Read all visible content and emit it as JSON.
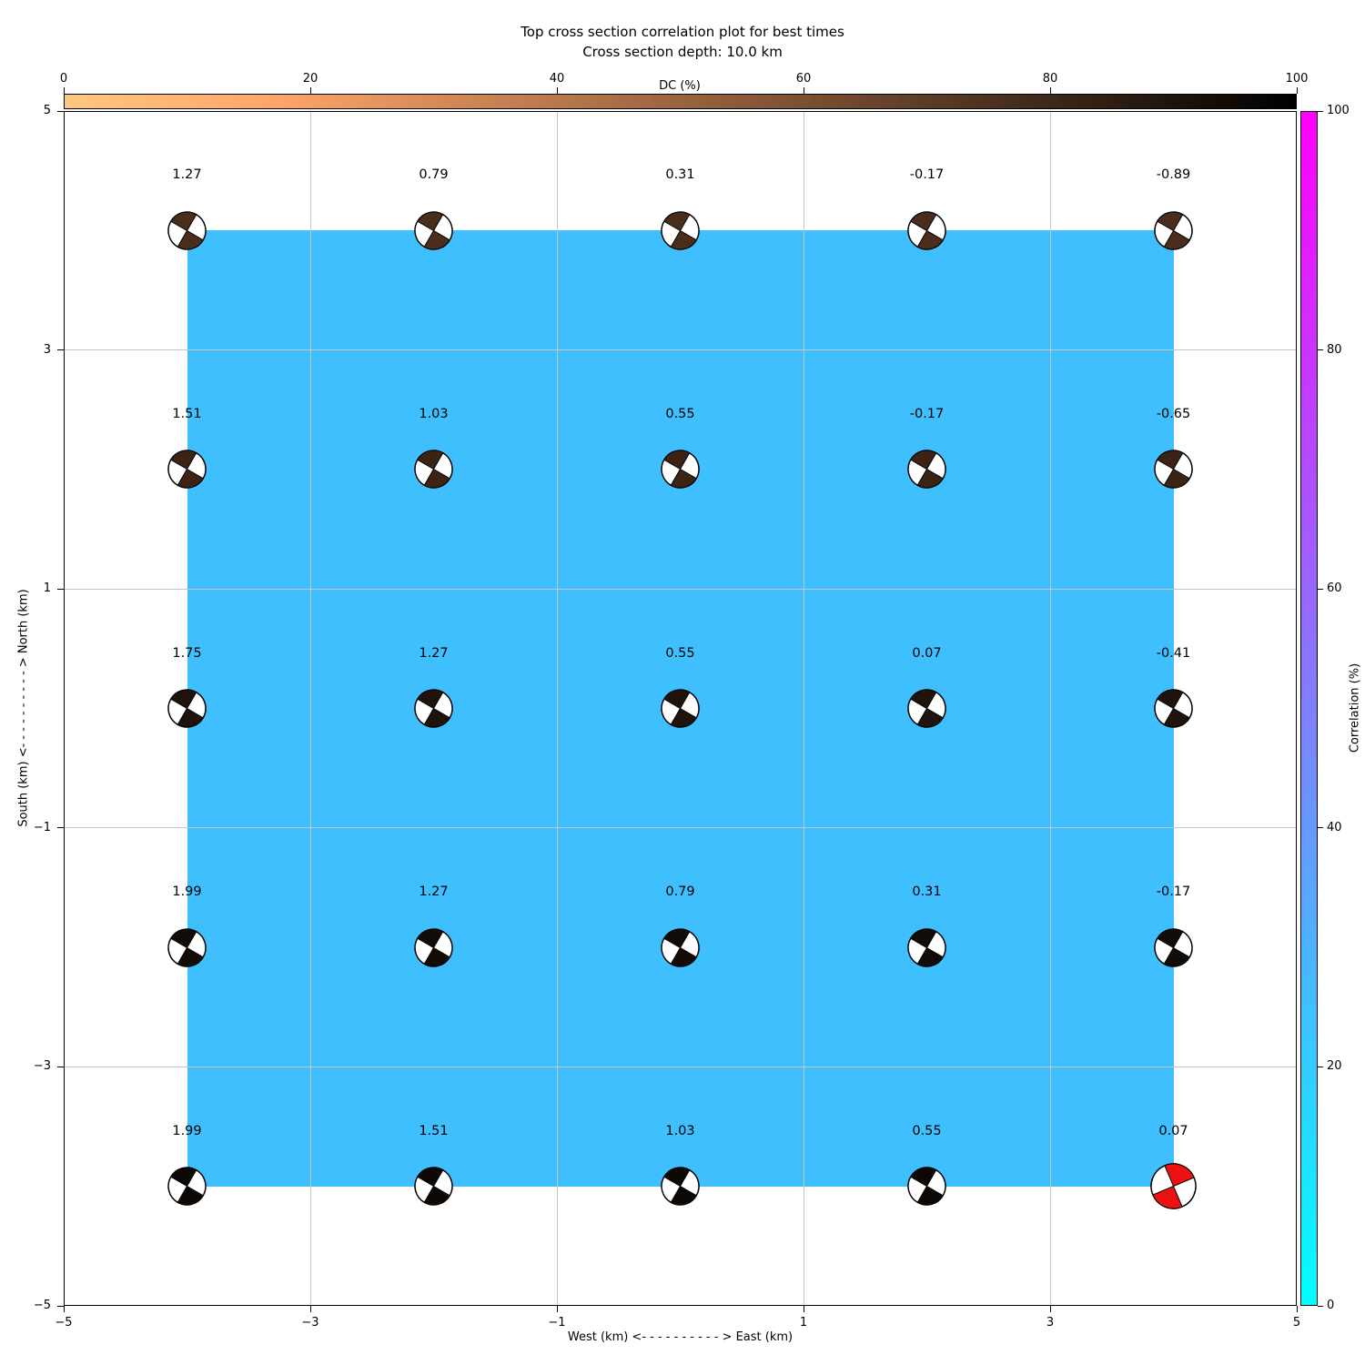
{
  "title": {
    "line1": "Top cross section correlation plot for best times",
    "line2": "Cross section depth: 10.0 km"
  },
  "top_colorbar": {
    "label": "DC (%)",
    "ticks": [
      "0",
      "20",
      "40",
      "60",
      "80",
      "100"
    ],
    "colormap": "copper_r",
    "color_left": "#ffc77f",
    "color_right": "#000000"
  },
  "right_colorbar": {
    "label": "Correlation (%)",
    "ticks": [
      "100",
      "80",
      "60",
      "40",
      "20",
      "0"
    ],
    "colormap": "cool",
    "color_top": "#ff00ff",
    "color_bottom": "#00ffff"
  },
  "axes": {
    "x_label": "West (km) <- - - - - - - - - - > East (km)",
    "y_label": "South (km) <- - - - - - - - - - > North (km)",
    "x_ticks": [
      "−5",
      "−3",
      "−1",
      "1",
      "3",
      "5"
    ],
    "y_ticks": [
      "5",
      "3",
      "1",
      "−1",
      "−3",
      "−5"
    ],
    "xlim": [
      -5,
      5
    ],
    "ylim": [
      -5,
      5
    ]
  },
  "chart_data": {
    "type": "beachball_grid",
    "x_positions": [
      -4,
      -2,
      0,
      2,
      4
    ],
    "y_positions": [
      4,
      2,
      0,
      -2,
      -4
    ],
    "values": [
      [
        "1.27",
        "0.79",
        "0.31",
        "-0.17",
        "-0.89"
      ],
      [
        "1.51",
        "1.03",
        "0.55",
        "-0.17",
        "-0.65"
      ],
      [
        "1.75",
        "1.27",
        "0.55",
        "0.07",
        "-0.41"
      ],
      [
        "1.99",
        "1.27",
        "0.79",
        "0.31",
        "-0.17"
      ],
      [
        "1.99",
        "1.51",
        "1.03",
        "0.55",
        "0.07"
      ]
    ],
    "row_ball_colors": [
      "#4a2d1b",
      "#3c2415",
      "#1f130b",
      "#120b06",
      "#0d0804"
    ],
    "ball_radius": 20.5,
    "ball_rotation_deg": -15,
    "highlight": {
      "row": 4,
      "col": 4,
      "color": "#ee1111",
      "radius": 24.5,
      "rotation_deg": 22
    },
    "shaded_region": {
      "x": [
        -4,
        4
      ],
      "y": [
        -4,
        4
      ],
      "color": "#40bfff"
    },
    "grid_x": [
      -3,
      -1,
      1,
      3
    ],
    "grid_y": [
      3,
      1,
      -1,
      -3
    ],
    "grid_color": "#c6c6c6"
  }
}
